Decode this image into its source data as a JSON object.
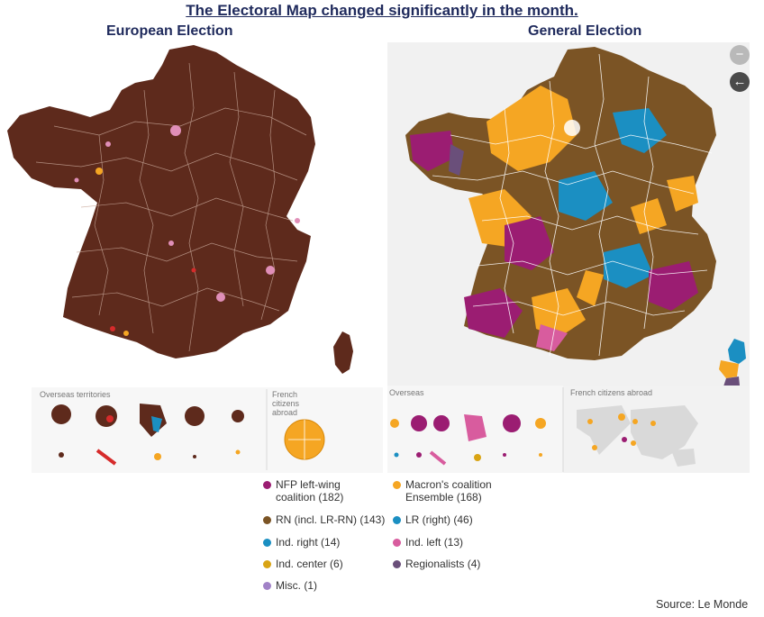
{
  "title": "The Electoral Map changed significantly in the month.",
  "european": {
    "title": "European Election",
    "overseas_label": "Overseas territories",
    "abroad_label": "French citizens abroad",
    "dominant_color": "#5e2a1c"
  },
  "general": {
    "title": "General Election",
    "overseas_label": "Overseas",
    "abroad_label": "French citizens abroad",
    "zoom_out_label": "−",
    "back_label": "←"
  },
  "legend": [
    {
      "label": "NFP left-wing coalition (182)",
      "line1": "NFP left-wing",
      "line2": "coalition (182)",
      "color": "#9b1d72"
    },
    {
      "label": "Macron's coalition Ensemble (168)",
      "line1": "Macron's coalition",
      "line2": "Ensemble (168)",
      "color": "#f5a623"
    },
    {
      "label": "RN (incl. LR-RN) (143)",
      "line1": "RN (incl. LR-RN) (143)",
      "line2": "",
      "color": "#7b5425"
    },
    {
      "label": "LR (right) (46)",
      "line1": "LR (right) (46)",
      "line2": "",
      "color": "#1b8fc2"
    },
    {
      "label": "Ind. right (14)",
      "line1": "Ind. right (14)",
      "line2": "",
      "color": "#1b8fc2"
    },
    {
      "label": "Ind. left (13)",
      "line1": "Ind. left (13)",
      "line2": "",
      "color": "#d85c9e"
    },
    {
      "label": "Ind. center (6)",
      "line1": "Ind. center (6)",
      "line2": "",
      "color": "#d9a414"
    },
    {
      "label": "Regionalists (4)",
      "line1": "Regionalists (4)",
      "line2": "",
      "color": "#6a4f7a"
    },
    {
      "label": "Misc. (1)",
      "line1": "Misc. (1)",
      "line2": "",
      "color": "#a182c7"
    }
  ],
  "source": "Source: Le Monde"
}
